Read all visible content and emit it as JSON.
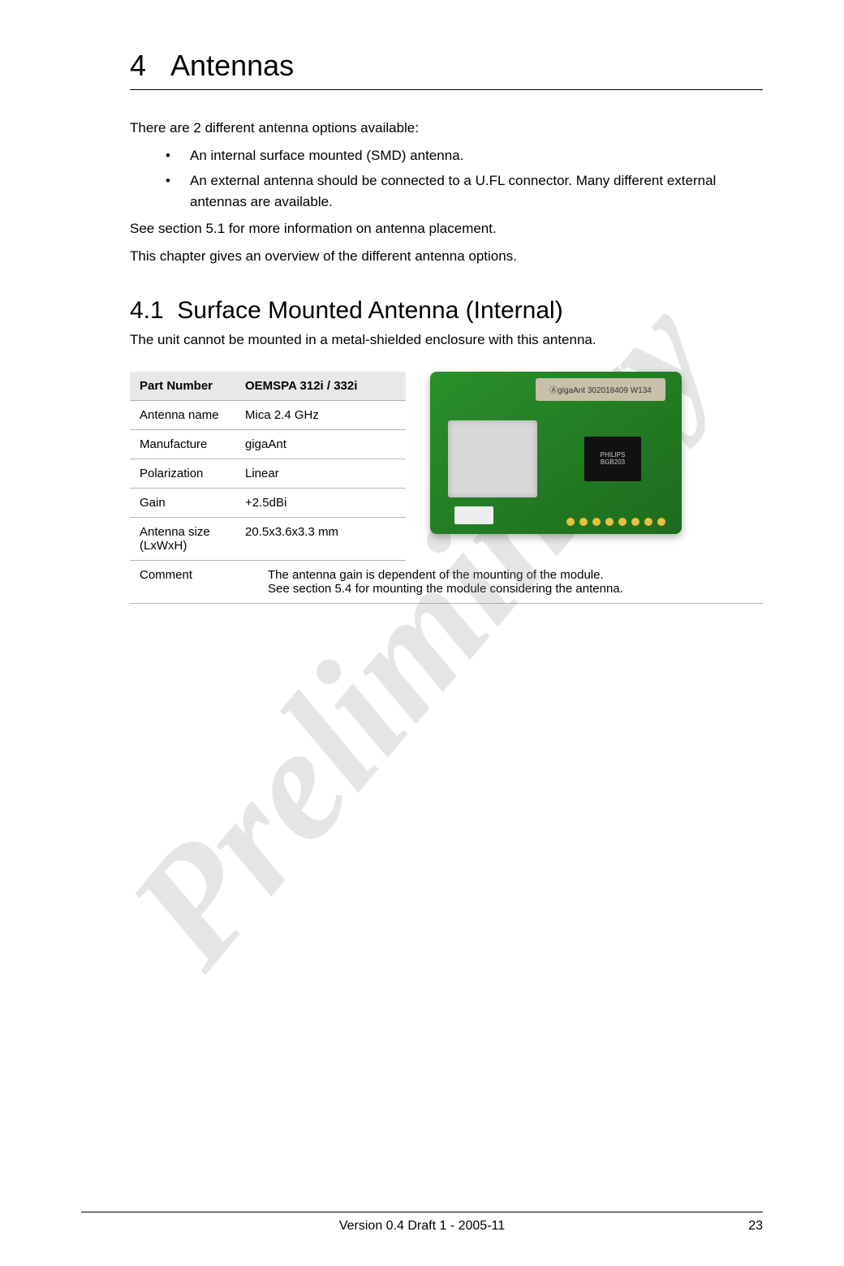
{
  "watermark": "Preliminary",
  "chapter": {
    "number": "4",
    "title": "Antennas"
  },
  "intro": {
    "p1": "There are 2 different antenna options available:",
    "bullets": [
      "An internal surface mounted (SMD) antenna.",
      "An external antenna should be connected to a U.FL connector. Many different external antennas are available."
    ],
    "p2": "See section 5.1 for more information on antenna placement.",
    "p3": "This chapter gives an overview of the different antenna options."
  },
  "section": {
    "number": "4.1",
    "title": "Surface Mounted Antenna (Internal)",
    "subtitle": "The unit cannot be mounted in a metal-shielded enclosure with this antenna."
  },
  "table": {
    "header_left": "Part Number",
    "header_right": "OEMSPA 312i / 332i",
    "rows": [
      {
        "label": "Antenna name",
        "value": "Mica 2.4 GHz"
      },
      {
        "label": "Manufacture",
        "value": "gigaAnt"
      },
      {
        "label": "Polarization",
        "value": "Linear"
      },
      {
        "label": "Gain",
        "value": "+2.5dBi"
      },
      {
        "label": "Antenna size (LxWxH)",
        "value": "20.5x3.6x3.3 mm"
      }
    ],
    "comment_label": "Comment",
    "comment_l1": "The antenna gain is dependent of the mounting of the module.",
    "comment_l2": "See section 5.4 for mounting the module considering the antenna."
  },
  "pcb": {
    "ant_marking": "ⒶgigaAnt 302018409 W134",
    "chip_label1": "PHILIPS",
    "chip_label2": "BGB203"
  },
  "footer": {
    "version": "Version 0.4 Draft 1 - 2005-11",
    "page": "23"
  },
  "colors": {
    "text": "#000000",
    "border": "#b5b5b5",
    "header_bg": "#e8e8e8",
    "pcb_green": "#2a8f2a",
    "watermark": "rgba(150,150,150,0.25)"
  }
}
